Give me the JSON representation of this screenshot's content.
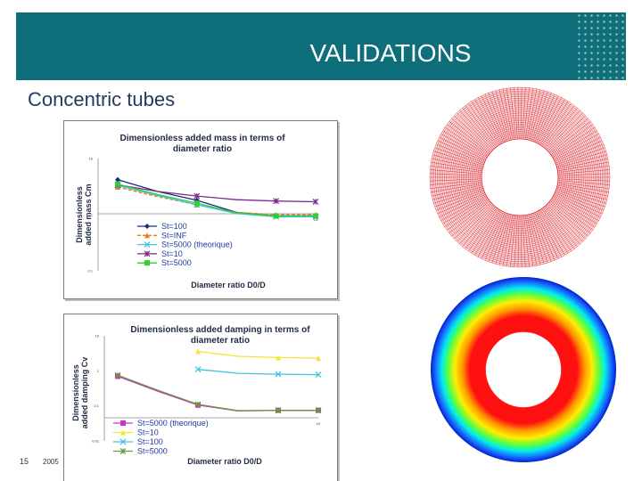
{
  "header": {
    "title": "VALIDATIONS"
  },
  "subtitle": "Concentric tubes",
  "footer": {
    "page_number": "15",
    "year": "2005"
  },
  "colors": {
    "header_bg": "#0e6f7b"
  },
  "images": {
    "mesh": "ring-mesh-icon",
    "contour": "ring-contour-icon"
  },
  "chart_data": [
    {
      "type": "line",
      "title_lines": [
        "Dimensionless added mass in terms of",
        "diameter ratio"
      ],
      "xlabel": "Diameter ratio D0/D",
      "ylabel_lines": [
        "Dimensionless",
        "added mass Cm"
      ],
      "yticks": [
        "10",
        "1",
        "0.1"
      ],
      "xtick_right": "10",
      "legend_position": "lower-left",
      "x": [
        1,
        2,
        3,
        4,
        5,
        6
      ],
      "series": [
        {
          "name": "St=100",
          "color": "#1a2a7a",
          "marker": "diamond",
          "values": [
            4.2,
            2.6,
            1.8,
            1.1,
            0.95,
            0.95
          ]
        },
        {
          "name": "St=INF",
          "color": "#e67e22",
          "marker": "triangle",
          "dash": true,
          "values": [
            3.1,
            2.1,
            1.5,
            1.1,
            1.0,
            1.0
          ]
        },
        {
          "name": "St=5000 (theorique)",
          "color": "#3ec5e0",
          "marker": "x",
          "values": [
            3.3,
            2.2,
            1.5,
            1.05,
            0.92,
            0.92
          ]
        },
        {
          "name": "St=10",
          "color": "#7a2a8a",
          "marker": "star",
          "values": [
            3.4,
            2.6,
            2.15,
            1.85,
            1.75,
            1.7
          ]
        },
        {
          "name": "St=5000",
          "color": "#33cc33",
          "marker": "square",
          "values": [
            3.5,
            2.3,
            1.6,
            1.08,
            0.95,
            0.95
          ]
        }
      ]
    },
    {
      "type": "line",
      "title_lines": [
        "Dimensionless added damping in terms of",
        "diameter ratio"
      ],
      "xlabel": "Diameter ratio D0/D",
      "ylabel_lines": [
        "Dimensionless",
        "added damping Cv"
      ],
      "yticks": [
        "10",
        "1",
        "0.1",
        "0.01"
      ],
      "xtick_right": "10",
      "legend_position": "lower-left",
      "x": [
        1,
        2,
        3,
        4,
        5,
        6
      ],
      "series": [
        {
          "name": "St=5000 (theorique)",
          "color": "#cc33cc",
          "marker": "square",
          "values": [
            0.7,
            0.26,
            0.105,
            0.072,
            0.075,
            0.075
          ]
        },
        {
          "name": "St=10",
          "color": "#f2e33a",
          "marker": "triangle",
          "values": [
            null,
            null,
            3.6,
            2.6,
            2.4,
            2.3
          ]
        },
        {
          "name": "St=100",
          "color": "#3ec5e0",
          "marker": "x",
          "values": [
            null,
            null,
            1.1,
            0.85,
            0.8,
            0.78
          ]
        },
        {
          "name": "St=5000",
          "color": "#6a9a3a",
          "marker": "star",
          "values": [
            0.75,
            0.28,
            0.11,
            0.073,
            0.074,
            0.074
          ]
        }
      ]
    }
  ]
}
